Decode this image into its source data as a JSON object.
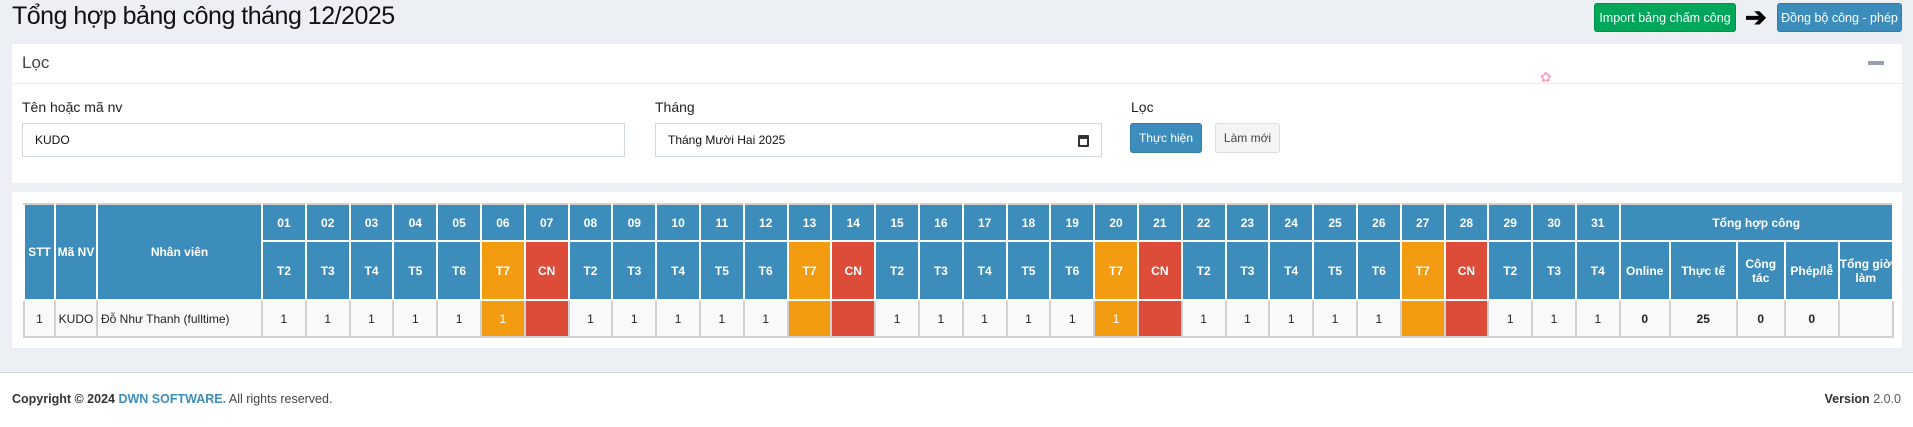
{
  "header": {
    "title": "Tổng hợp bảng công tháng 12/2025",
    "import_label": "Import bảng chấm công",
    "sync_label": "Đồng bộ công - phép"
  },
  "filter": {
    "title": "Lọc",
    "name_label": "Tên hoặc mã nv",
    "name_value": "KUDO",
    "month_label": "Tháng",
    "month_value": "Tháng Mười Hai  2025",
    "action_label": "Lọc",
    "run_label": "Thực hiện",
    "reset_label": "Làm mới"
  },
  "colors": {
    "header": "#3c8dbc",
    "saturday": "#f39c12",
    "sunday": "#dd4b39",
    "import": "#00a65a"
  },
  "table": {
    "headers": {
      "stt": "STT",
      "code": "Mã NV",
      "name": "Nhân viên",
      "summary": "Tổng hợp công"
    },
    "summary_cols": [
      "Online",
      "Thực tế",
      "Công tác",
      "Phép/lễ",
      "Tổng giờ làm"
    ],
    "days": [
      "01",
      "02",
      "03",
      "04",
      "05",
      "06",
      "07",
      "08",
      "09",
      "10",
      "11",
      "12",
      "13",
      "14",
      "15",
      "16",
      "17",
      "18",
      "19",
      "20",
      "21",
      "22",
      "23",
      "24",
      "25",
      "26",
      "27",
      "28",
      "29",
      "30",
      "31"
    ],
    "weekdays": [
      "T2",
      "T3",
      "T4",
      "T5",
      "T6",
      "T7",
      "CN",
      "T2",
      "T3",
      "T4",
      "T5",
      "T6",
      "T7",
      "CN",
      "T2",
      "T3",
      "T4",
      "T5",
      "T6",
      "T7",
      "CN",
      "T2",
      "T3",
      "T4",
      "T5",
      "T6",
      "T7",
      "CN",
      "T2",
      "T3",
      "T4"
    ],
    "rows": [
      {
        "stt": "1",
        "code": "KUDO",
        "name": "Đỗ Như Thanh (fulltime)",
        "days": [
          "1",
          "1",
          "1",
          "1",
          "1",
          "1",
          "",
          "1",
          "1",
          "1",
          "1",
          "1",
          "",
          "",
          "1",
          "1",
          "1",
          "1",
          "1",
          "1",
          "",
          "1",
          "1",
          "1",
          "1",
          "1",
          "",
          "",
          "1",
          "1",
          "1"
        ],
        "summary": [
          "0",
          "25",
          "0",
          "0",
          ""
        ]
      }
    ]
  },
  "footer": {
    "copyright": "Copyright © 2024",
    "company": "DWN SOFTWARE.",
    "rights": "All rights reserved.",
    "version_label": "Version",
    "version": "2.0.0"
  }
}
